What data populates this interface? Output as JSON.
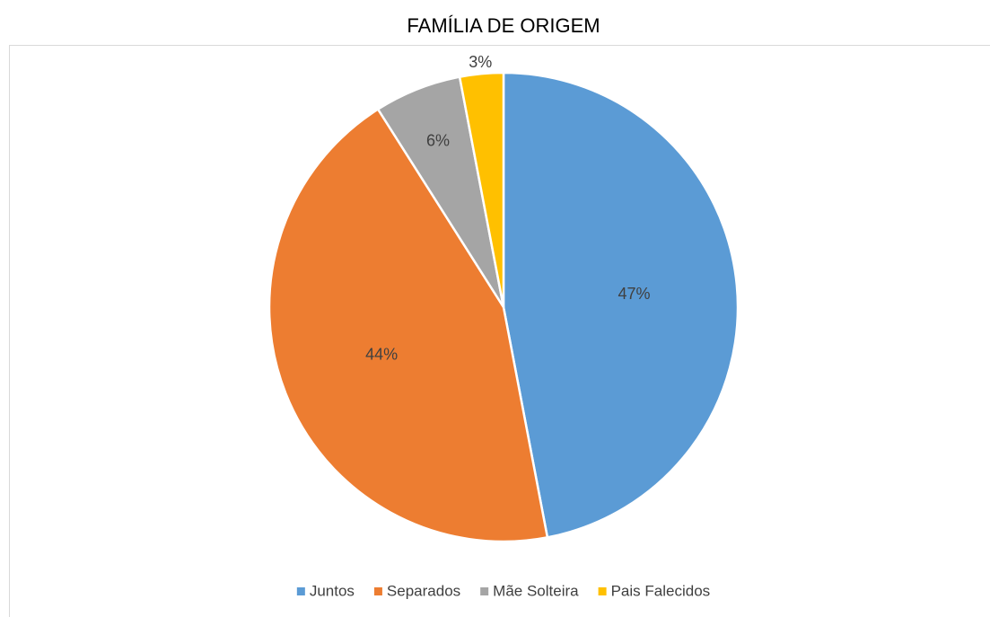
{
  "chart_data": {
    "type": "pie",
    "title": "FAMÍLIA DE ORIGEM",
    "categories": [
      "Juntos",
      "Separados",
      "Mãe Solteira",
      "Pais Falecidos"
    ],
    "values": [
      47,
      44,
      6,
      3
    ],
    "value_labels": [
      "47%",
      "44%",
      "6%",
      "3%"
    ],
    "colors": [
      "#5b9bd5",
      "#ed7d31",
      "#a5a5a5",
      "#ffc000"
    ],
    "legend": "bottom"
  }
}
